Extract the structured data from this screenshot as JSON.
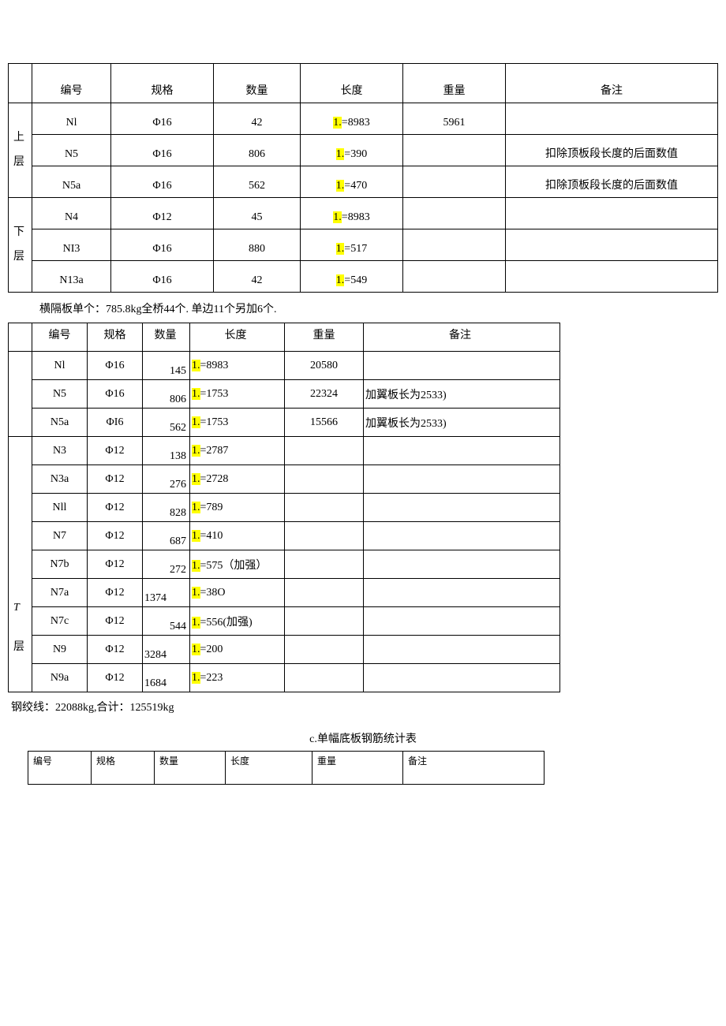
{
  "hl_prefix": "1.",
  "table1": {
    "headers": {
      "num": "编号",
      "spec": "规格",
      "qty": "数量",
      "len": "长度",
      "wt": "重量",
      "note": "备注"
    },
    "section_upper": "上\n\n层",
    "section_lower": "下层",
    "rows_upper": [
      {
        "num": "Nl",
        "spec": "Φ16",
        "qty": "42",
        "len": "=8983",
        "wt": "5961",
        "note": ""
      },
      {
        "num": "N5",
        "spec": "Φ16",
        "qty": "806",
        "len": "=390",
        "wt": "",
        "note": "扣除顶板段长度的后面数值"
      },
      {
        "num": "N5a",
        "spec": "Φ16",
        "qty": "562",
        "len": "=470",
        "wt": "",
        "note": "扣除顶板段长度的后面数值"
      }
    ],
    "rows_lower": [
      {
        "num": "N4",
        "spec": "Φ12",
        "qty": "45",
        "len": "=8983",
        "wt": "",
        "note": ""
      },
      {
        "num": "NI3",
        "spec": "Φ16",
        "qty": "880",
        "len": "=517",
        "wt": "",
        "note": ""
      },
      {
        "num": "N13a",
        "spec": "Φ16",
        "qty": "42",
        "len": "=549",
        "wt": "",
        "note": ""
      }
    ]
  },
  "caption1": "横隔板单个：785.8kg全桥44个. 单边11个另加6个.",
  "table2": {
    "headers": {
      "num": "编号",
      "spec": "规格",
      "qty": "数量",
      "len": "长度",
      "wt": "重量",
      "note": "备注"
    },
    "top_rows": [
      {
        "num": "Nl",
        "spec": "Φ16",
        "qty": "145",
        "qtyAlign": "right",
        "len": "=8983",
        "wt": "20580",
        "note": ""
      },
      {
        "num": "N5",
        "spec": "Φ16",
        "qty": "806",
        "qtyAlign": "right",
        "len": "=1753",
        "wt": "22324",
        "note": "加翼板长为2533)"
      },
      {
        "num": "N5a",
        "spec": "ΦI6",
        "qty": "562",
        "qtyAlign": "right",
        "len": "=1753",
        "wt": "15566",
        "note": "加翼板长为2533)"
      }
    ],
    "section_label_line1": "T",
    "section_label_line2": "层",
    "bottom_rows": [
      {
        "num": "N3",
        "spec": "Φ12",
        "qty": "138",
        "qtyAlign": "right",
        "len": "=2787",
        "wt": "",
        "note": ""
      },
      {
        "num": "N3a",
        "spec": "Φ12",
        "qty": "276",
        "qtyAlign": "right",
        "len": "=2728",
        "wt": "",
        "note": ""
      },
      {
        "num": "Nll",
        "spec": "Φ12",
        "qty": "828",
        "qtyAlign": "right",
        "len": "=789",
        "wt": "",
        "note": ""
      },
      {
        "num": "N7",
        "spec": "Φ12",
        "qty": "687",
        "qtyAlign": "right",
        "len": "=410",
        "wt": "",
        "note": ""
      },
      {
        "num": "N7b",
        "spec": "Φ12",
        "qty": "272",
        "qtyAlign": "right",
        "len": "=575（加强）",
        "wt": "",
        "note": ""
      },
      {
        "num": "N7a",
        "spec": "Φ12",
        "qty": "1374",
        "qtyAlign": "left",
        "len": "=38O",
        "wt": "",
        "note": ""
      },
      {
        "num": "N7c",
        "spec": "Φ12",
        "qty": "544",
        "qtyAlign": "right",
        "len": "=556(加强)",
        "wt": "",
        "note": ""
      },
      {
        "num": "N9",
        "spec": "Φ12",
        "qty": "3284",
        "qtyAlign": "left",
        "len": "=200",
        "wt": "",
        "note": ""
      },
      {
        "num": "N9a",
        "spec": "Φ12",
        "qty": "1684",
        "qtyAlign": "left",
        "len": "=223",
        "wt": "",
        "note": ""
      }
    ]
  },
  "steel_line": "钢绞线：22088kg,合计：125519kg",
  "section_c_title": "c.单幅底板钢筋统计表",
  "table3": {
    "headers": [
      "编号",
      "规格",
      "数量",
      "长度",
      "重量",
      "备注"
    ]
  }
}
